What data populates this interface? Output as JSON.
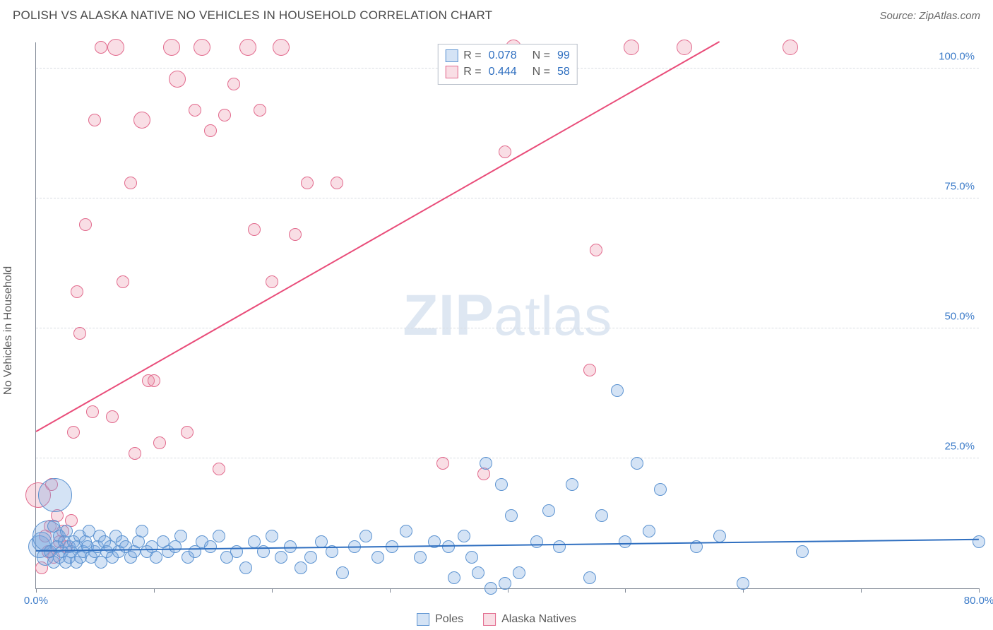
{
  "chart": {
    "type": "scatter_with_regression",
    "title": "POLISH VS ALASKA NATIVE NO VEHICLES IN HOUSEHOLD CORRELATION CHART",
    "source_label": "Source: ZipAtlas.com",
    "y_axis_title": "No Vehicles in Household",
    "watermark_prefix": "ZIP",
    "watermark_suffix": "atlas",
    "background_color": "#ffffff",
    "grid_color": "#d8dce2",
    "axis_color": "#808895",
    "tick_label_color": "#3d7cc9",
    "title_color": "#4a4a4a",
    "title_fontsize": 17,
    "tick_fontsize": 15,
    "xlim": [
      0,
      80
    ],
    "ylim": [
      0,
      105
    ],
    "xtick_positions": [
      0,
      10,
      20,
      30,
      40,
      50,
      60,
      70,
      80
    ],
    "xtick_labels_shown": {
      "0": "0.0%",
      "80": "80.0%"
    },
    "ytick_positions": [
      25,
      50,
      75,
      100
    ],
    "ytick_labels": {
      "25": "25.0%",
      "50": "50.0%",
      "75": "75.0%",
      "100": "100.0%"
    },
    "stats": [
      {
        "series": "poles",
        "R_label": "R =",
        "R": "0.078",
        "N_label": "N =",
        "N": "99"
      },
      {
        "series": "alaska",
        "R_label": "R =",
        "R": "0.444",
        "N_label": "N =",
        "N": "58"
      }
    ],
    "series": {
      "poles": {
        "label": "Poles",
        "fill": "rgba(121,168,224,0.32)",
        "stroke": "#5c93d1",
        "reg_line_color": "#2f6fc0",
        "reg_line_width": 2,
        "regression": {
          "x1": 0,
          "y1": 7.0,
          "x2": 80,
          "y2": 9.2
        },
        "base_marker_r": 9,
        "points": [
          {
            "x": 0.3,
            "y": 8,
            "r": 16
          },
          {
            "x": 0.5,
            "y": 9,
            "r": 14
          },
          {
            "x": 0.8,
            "y": 6,
            "r": 12
          },
          {
            "x": 1.0,
            "y": 10,
            "r": 22
          },
          {
            "x": 1.2,
            "y": 7
          },
          {
            "x": 1.5,
            "y": 12
          },
          {
            "x": 1.5,
            "y": 5
          },
          {
            "x": 1.6,
            "y": 18,
            "r": 24
          },
          {
            "x": 1.8,
            "y": 8
          },
          {
            "x": 2.0,
            "y": 6
          },
          {
            "x": 2.0,
            "y": 10
          },
          {
            "x": 2.2,
            "y": 7
          },
          {
            "x": 2.4,
            "y": 9
          },
          {
            "x": 2.5,
            "y": 5
          },
          {
            "x": 2.6,
            "y": 11
          },
          {
            "x": 2.8,
            "y": 6
          },
          {
            "x": 2.8,
            "y": 8
          },
          {
            "x": 3.0,
            "y": 7
          },
          {
            "x": 3.2,
            "y": 9
          },
          {
            "x": 3.4,
            "y": 5
          },
          {
            "x": 3.5,
            "y": 8
          },
          {
            "x": 3.7,
            "y": 10
          },
          {
            "x": 3.8,
            "y": 6
          },
          {
            "x": 4.0,
            "y": 7
          },
          {
            "x": 4.2,
            "y": 9
          },
          {
            "x": 4.4,
            "y": 8
          },
          {
            "x": 4.5,
            "y": 11
          },
          {
            "x": 4.7,
            "y": 6
          },
          {
            "x": 5.0,
            "y": 7
          },
          {
            "x": 5.2,
            "y": 8
          },
          {
            "x": 5.4,
            "y": 10
          },
          {
            "x": 5.5,
            "y": 5
          },
          {
            "x": 5.8,
            "y": 9
          },
          {
            "x": 6.0,
            "y": 7
          },
          {
            "x": 6.3,
            "y": 8
          },
          {
            "x": 6.5,
            "y": 6
          },
          {
            "x": 6.8,
            "y": 10
          },
          {
            "x": 7.0,
            "y": 7
          },
          {
            "x": 7.3,
            "y": 9
          },
          {
            "x": 7.6,
            "y": 8
          },
          {
            "x": 8.0,
            "y": 6
          },
          {
            "x": 8.3,
            "y": 7
          },
          {
            "x": 8.7,
            "y": 9
          },
          {
            "x": 9.0,
            "y": 11
          },
          {
            "x": 9.4,
            "y": 7
          },
          {
            "x": 9.8,
            "y": 8
          },
          {
            "x": 10.2,
            "y": 6
          },
          {
            "x": 10.8,
            "y": 9
          },
          {
            "x": 11.2,
            "y": 7
          },
          {
            "x": 11.8,
            "y": 8
          },
          {
            "x": 12.3,
            "y": 10
          },
          {
            "x": 12.9,
            "y": 6
          },
          {
            "x": 13.5,
            "y": 7
          },
          {
            "x": 14.1,
            "y": 9
          },
          {
            "x": 14.8,
            "y": 8
          },
          {
            "x": 15.5,
            "y": 10
          },
          {
            "x": 16.2,
            "y": 6
          },
          {
            "x": 17.0,
            "y": 7
          },
          {
            "x": 17.8,
            "y": 4
          },
          {
            "x": 18.5,
            "y": 9
          },
          {
            "x": 19.3,
            "y": 7
          },
          {
            "x": 20.0,
            "y": 10
          },
          {
            "x": 20.8,
            "y": 6
          },
          {
            "x": 21.6,
            "y": 8
          },
          {
            "x": 22.5,
            "y": 4
          },
          {
            "x": 23.3,
            "y": 6
          },
          {
            "x": 24.2,
            "y": 9
          },
          {
            "x": 25.1,
            "y": 7
          },
          {
            "x": 26.0,
            "y": 3
          },
          {
            "x": 27.0,
            "y": 8
          },
          {
            "x": 28.0,
            "y": 10
          },
          {
            "x": 29.0,
            "y": 6
          },
          {
            "x": 30.2,
            "y": 8
          },
          {
            "x": 31.4,
            "y": 11
          },
          {
            "x": 32.6,
            "y": 6
          },
          {
            "x": 33.8,
            "y": 9
          },
          {
            "x": 35.0,
            "y": 8
          },
          {
            "x": 35.5,
            "y": 2
          },
          {
            "x": 36.3,
            "y": 10
          },
          {
            "x": 37.0,
            "y": 6
          },
          {
            "x": 37.5,
            "y": 3
          },
          {
            "x": 38.2,
            "y": 24
          },
          {
            "x": 38.6,
            "y": 0
          },
          {
            "x": 39.5,
            "y": 20
          },
          {
            "x": 39.8,
            "y": 1
          },
          {
            "x": 40.3,
            "y": 14
          },
          {
            "x": 41.0,
            "y": 3
          },
          {
            "x": 42.5,
            "y": 9
          },
          {
            "x": 43.5,
            "y": 15
          },
          {
            "x": 44.4,
            "y": 8
          },
          {
            "x": 45.5,
            "y": 20
          },
          {
            "x": 47.0,
            "y": 2
          },
          {
            "x": 48.0,
            "y": 14
          },
          {
            "x": 49.3,
            "y": 38
          },
          {
            "x": 50.0,
            "y": 9
          },
          {
            "x": 51.0,
            "y": 24
          },
          {
            "x": 52.0,
            "y": 11
          },
          {
            "x": 53.0,
            "y": 19
          },
          {
            "x": 56.0,
            "y": 8
          },
          {
            "x": 58.0,
            "y": 10
          },
          {
            "x": 60.0,
            "y": 1
          },
          {
            "x": 65.0,
            "y": 7
          },
          {
            "x": 80.0,
            "y": 9
          }
        ]
      },
      "alaska": {
        "label": "Alaska Natives",
        "fill": "rgba(235,138,163,0.28)",
        "stroke": "#e26a8d",
        "reg_line_color": "#e94d7a",
        "reg_line_width": 2,
        "regression": {
          "x1": 0,
          "y1": 30.0,
          "x2": 58,
          "y2": 105.0
        },
        "base_marker_r": 9,
        "points": [
          {
            "x": 0.2,
            "y": 18,
            "r": 18
          },
          {
            "x": 0.5,
            "y": 4
          },
          {
            "x": 0.8,
            "y": 10
          },
          {
            "x": 1.0,
            "y": 7
          },
          {
            "x": 1.2,
            "y": 12
          },
          {
            "x": 1.3,
            "y": 20
          },
          {
            "x": 1.5,
            "y": 6
          },
          {
            "x": 1.8,
            "y": 14
          },
          {
            "x": 2.0,
            "y": 9
          },
          {
            "x": 2.3,
            "y": 11
          },
          {
            "x": 2.6,
            "y": 8
          },
          {
            "x": 3.0,
            "y": 13
          },
          {
            "x": 3.2,
            "y": 30
          },
          {
            "x": 3.5,
            "y": 57
          },
          {
            "x": 3.7,
            "y": 49
          },
          {
            "x": 4.2,
            "y": 70
          },
          {
            "x": 4.8,
            "y": 34
          },
          {
            "x": 5.0,
            "y": 90
          },
          {
            "x": 5.5,
            "y": 104
          },
          {
            "x": 6.5,
            "y": 33
          },
          {
            "x": 6.8,
            "y": 104,
            "r": 12
          },
          {
            "x": 7.4,
            "y": 59
          },
          {
            "x": 8.0,
            "y": 78
          },
          {
            "x": 8.4,
            "y": 26
          },
          {
            "x": 9.0,
            "y": 90,
            "r": 12
          },
          {
            "x": 9.5,
            "y": 40
          },
          {
            "x": 10.0,
            "y": 40
          },
          {
            "x": 10.5,
            "y": 28
          },
          {
            "x": 11.5,
            "y": 104,
            "r": 12
          },
          {
            "x": 12.0,
            "y": 98,
            "r": 12
          },
          {
            "x": 12.8,
            "y": 30
          },
          {
            "x": 13.5,
            "y": 92
          },
          {
            "x": 14.1,
            "y": 104,
            "r": 12
          },
          {
            "x": 14.8,
            "y": 88
          },
          {
            "x": 15.5,
            "y": 23
          },
          {
            "x": 16.0,
            "y": 91
          },
          {
            "x": 16.8,
            "y": 97
          },
          {
            "x": 18.0,
            "y": 104,
            "r": 12
          },
          {
            "x": 18.5,
            "y": 69
          },
          {
            "x": 19.0,
            "y": 92
          },
          {
            "x": 20.0,
            "y": 59
          },
          {
            "x": 20.8,
            "y": 104,
            "r": 12
          },
          {
            "x": 22.0,
            "y": 68
          },
          {
            "x": 23.0,
            "y": 78
          },
          {
            "x": 25.5,
            "y": 78
          },
          {
            "x": 34.5,
            "y": 24
          },
          {
            "x": 38.0,
            "y": 22
          },
          {
            "x": 39.8,
            "y": 84
          },
          {
            "x": 40.5,
            "y": 104,
            "r": 11
          },
          {
            "x": 47.0,
            "y": 42
          },
          {
            "x": 47.5,
            "y": 65
          },
          {
            "x": 50.5,
            "y": 104,
            "r": 11
          },
          {
            "x": 55.0,
            "y": 104,
            "r": 11
          },
          {
            "x": 64.0,
            "y": 104,
            "r": 11
          }
        ]
      }
    },
    "legend_bottom": [
      {
        "series": "poles"
      },
      {
        "series": "alaska"
      }
    ]
  }
}
